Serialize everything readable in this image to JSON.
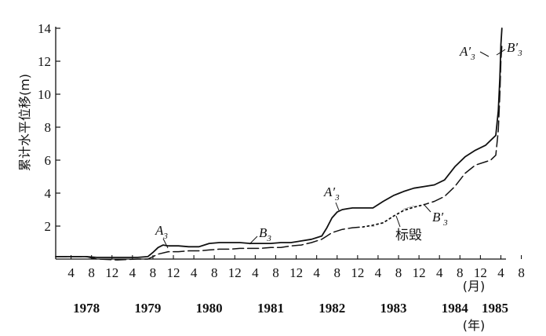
{
  "chart_data": {
    "type": "line",
    "ylabel": "累计水平位移(m)",
    "x_unit_label": "(月)",
    "year_unit_label": "(年)",
    "ylim": [
      0,
      14
    ],
    "y_ticks": [
      2,
      4,
      6,
      8,
      10,
      12,
      14
    ],
    "month_ticks": [
      "4",
      "8",
      "12",
      "4",
      "8",
      "12",
      "4",
      "8",
      "12",
      "4",
      "8",
      "12",
      "4",
      "8",
      "12",
      "4",
      "8",
      "12",
      "4",
      "8",
      "12",
      "4",
      "8"
    ],
    "years": [
      "1978",
      "1979",
      "1980",
      "1981",
      "1982",
      "1983",
      "1984",
      "1985"
    ],
    "series": [
      {
        "name": "A3",
        "style": "solid",
        "points": [
          [
            0,
            0.15
          ],
          [
            4,
            0.15
          ],
          [
            6,
            0.15
          ],
          [
            8,
            0.1
          ],
          [
            12,
            0.1
          ],
          [
            16,
            0.1
          ],
          [
            18,
            0.15
          ],
          [
            19,
            0.4
          ],
          [
            20,
            0.7
          ],
          [
            21,
            0.85
          ],
          [
            22,
            0.8
          ],
          [
            24,
            0.8
          ],
          [
            26,
            0.75
          ],
          [
            28,
            0.75
          ],
          [
            30,
            0.95
          ],
          [
            32,
            1.0
          ],
          [
            34,
            1.0
          ],
          [
            36,
            1.0
          ],
          [
            38,
            0.95
          ],
          [
            40,
            0.95
          ],
          [
            42,
            0.95
          ],
          [
            44,
            1.0
          ],
          [
            46,
            1.0
          ],
          [
            48,
            1.1
          ],
          [
            50,
            1.2
          ],
          [
            52,
            1.4
          ],
          [
            53,
            1.9
          ],
          [
            54,
            2.5
          ],
          [
            55,
            2.85
          ],
          [
            56,
            3.0
          ],
          [
            57,
            3.05
          ],
          [
            58,
            3.1
          ],
          [
            60,
            3.1
          ],
          [
            62,
            3.1
          ],
          [
            64,
            3.5
          ],
          [
            66,
            3.85
          ],
          [
            68,
            4.1
          ],
          [
            70,
            4.3
          ],
          [
            72,
            4.4
          ],
          [
            74,
            4.5
          ],
          [
            76,
            4.8
          ],
          [
            78,
            5.6
          ],
          [
            80,
            6.2
          ],
          [
            82,
            6.6
          ],
          [
            84,
            6.9
          ],
          [
            85,
            7.2
          ],
          [
            86,
            7.5
          ],
          [
            86.5,
            9
          ],
          [
            86.8,
            11
          ],
          [
            87,
            13
          ],
          [
            87.2,
            14
          ]
        ]
      },
      {
        "name": "B3",
        "style": "dashed",
        "points": [
          [
            0,
            0.15
          ],
          [
            4,
            0.15
          ],
          [
            6,
            0.15
          ],
          [
            8,
            0.0
          ],
          [
            12,
            -0.05
          ],
          [
            16,
            0.0
          ],
          [
            18,
            0.0
          ],
          [
            19,
            0.15
          ],
          [
            20,
            0.3
          ],
          [
            22,
            0.45
          ],
          [
            24,
            0.45
          ],
          [
            26,
            0.5
          ],
          [
            28,
            0.5
          ],
          [
            30,
            0.55
          ],
          [
            32,
            0.6
          ],
          [
            34,
            0.6
          ],
          [
            36,
            0.65
          ],
          [
            38,
            0.65
          ],
          [
            40,
            0.65
          ],
          [
            42,
            0.7
          ],
          [
            44,
            0.7
          ],
          [
            46,
            0.8
          ],
          [
            48,
            0.85
          ],
          [
            50,
            1.0
          ],
          [
            52,
            1.2
          ],
          [
            53,
            1.4
          ],
          [
            54,
            1.6
          ],
          [
            56,
            1.8
          ],
          [
            58,
            1.9
          ],
          [
            60,
            1.95
          ],
          [
            62,
            2.0
          ],
          [
            64,
            2.2
          ],
          [
            66,
            2.6
          ],
          [
            68,
            3.0
          ],
          [
            70,
            3.2
          ],
          [
            72,
            3.3
          ],
          [
            74,
            3.5
          ],
          [
            76,
            3.8
          ],
          [
            78,
            4.4
          ],
          [
            80,
            5.2
          ],
          [
            82,
            5.7
          ],
          [
            84,
            5.9
          ],
          [
            85,
            6.0
          ],
          [
            86,
            6.3
          ],
          [
            86.5,
            7.8
          ],
          [
            86.8,
            10
          ],
          [
            87,
            12
          ],
          [
            87.2,
            13
          ]
        ]
      }
    ],
    "annotations": {
      "a3": "A",
      "a3_sub": "3",
      "b3": "B",
      "b3_sub": "3",
      "a3p_mid": "A′",
      "a3p_mid_sub": "3",
      "b3p_mid": "B′",
      "b3p_mid_sub": "3",
      "destroyed": "标毁",
      "a3p_top": "A′",
      "a3p_top_sub": "3",
      "b3p_top": "B′",
      "b3p_top_sub": "3"
    }
  }
}
